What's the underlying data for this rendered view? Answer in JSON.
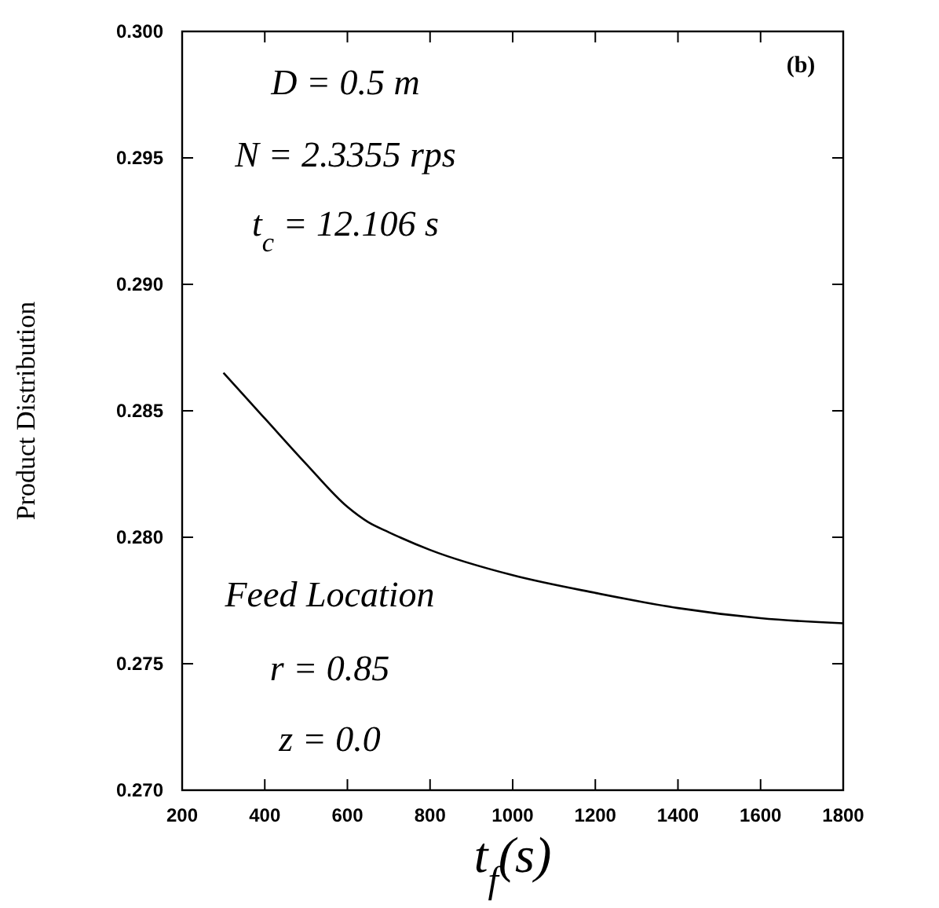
{
  "chart_data": {
    "type": "line",
    "xlabel": "t$_{f}$(s)",
    "ylabel": "Product Distribution",
    "x": [
      300,
      400,
      500,
      600,
      650,
      700,
      800,
      1000,
      1200,
      1400,
      1600,
      1800
    ],
    "series": [
      {
        "color": "#000000",
        "values": [
          0.2865,
          0.2847,
          0.2829,
          0.2812,
          0.2806,
          0.2802,
          0.2795,
          0.2785,
          0.2778,
          0.2772,
          0.2768,
          0.2766
        ]
      }
    ],
    "xlim": [
      200,
      1800
    ],
    "xticks": [
      200,
      400,
      600,
      800,
      1000,
      1200,
      1400,
      1600,
      1800
    ],
    "ylim": [
      0.27,
      0.3
    ],
    "yticks": [
      {
        "value": 0.27,
        "label": "0.270"
      },
      {
        "value": 0.275,
        "label": "0.275"
      },
      {
        "value": 0.28,
        "label": "0.280"
      },
      {
        "value": 0.285,
        "label": "0.285"
      },
      {
        "value": 0.29,
        "label": "0.290"
      },
      {
        "value": 0.295,
        "label": "0.295"
      },
      {
        "value": 0.3,
        "label": "0.300"
      }
    ],
    "grid": false,
    "marker": "none",
    "line_style": "solid",
    "annotations": [
      "D = 0.5 m",
      "N = 2.3355 rps",
      "t$_{c}$ = 12.106 s",
      "(b)",
      "Feed Location",
      "r = 0.85",
      "z = 0.0"
    ]
  }
}
